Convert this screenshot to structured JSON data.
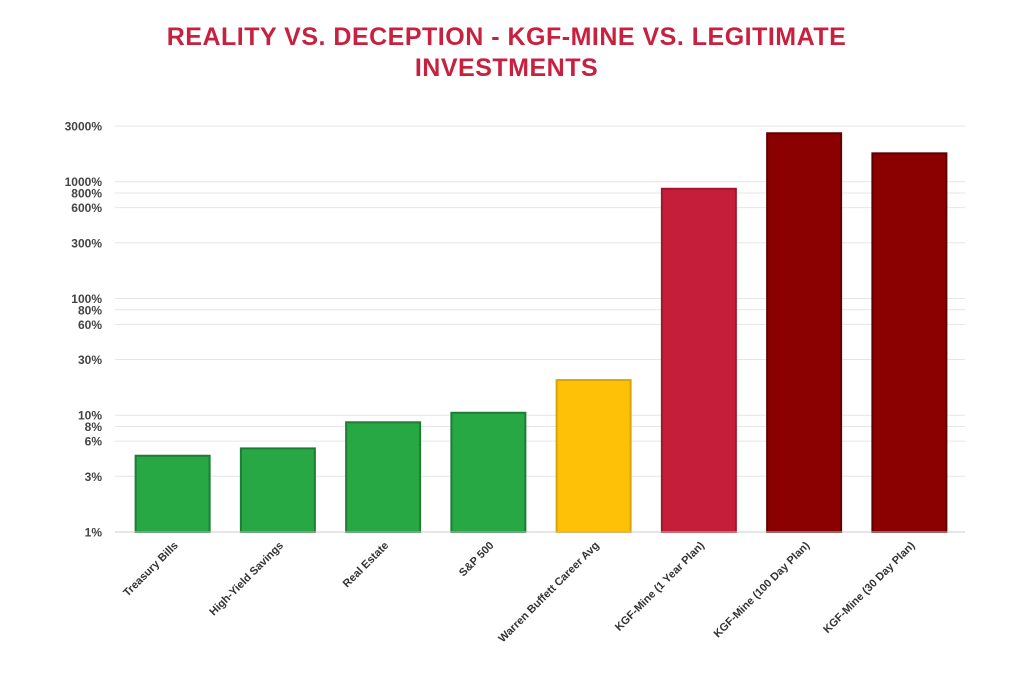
{
  "chart_data": {
    "type": "bar",
    "title_line1": "REALITY VS. DECEPTION - KGF-MINE VS. LEGITIMATE",
    "title_line2": "INVESTMENTS",
    "xlabel": "",
    "ylabel": "",
    "yscale": "log",
    "ylim": [
      1,
      3000
    ],
    "grid": true,
    "ticks": [
      {
        "value": 1,
        "label": "1%"
      },
      {
        "value": 3,
        "label": "3%"
      },
      {
        "value": 6,
        "label": "6%"
      },
      {
        "value": 8,
        "label": "8%"
      },
      {
        "value": 10,
        "label": "10%"
      },
      {
        "value": 30,
        "label": "30%"
      },
      {
        "value": 60,
        "label": "60%"
      },
      {
        "value": 80,
        "label": "80%"
      },
      {
        "value": 100,
        "label": "100%"
      },
      {
        "value": 300,
        "label": "300%"
      },
      {
        "value": 600,
        "label": "600%"
      },
      {
        "value": 800,
        "label": "800%"
      },
      {
        "value": 1000,
        "label": "1000%"
      },
      {
        "value": 3000,
        "label": "3000%"
      }
    ],
    "categories": [
      "Treasury Bills",
      "High-Yield Savings",
      "Real Estate",
      "S&P 500",
      "Warren Buffett Career Avg",
      "KGF-Mine (1 Year Plan)",
      "KGF-Mine (100 Day Plan)",
      "KGF-Mine (30 Day Plan)"
    ],
    "values": [
      4.5,
      5.2,
      8.7,
      10.5,
      20,
      870,
      2600,
      1750
    ],
    "colors": [
      "#28a745",
      "#28a745",
      "#28a745",
      "#28a745",
      "#ffc107",
      "#c41e3a",
      "#8b0000",
      "#8b0000"
    ],
    "border_colors": [
      "#1e7d34",
      "#1e7d34",
      "#1e7d34",
      "#1e7d34",
      "#d9a406",
      "#a3152f",
      "#5e0000",
      "#5e0000"
    ]
  }
}
